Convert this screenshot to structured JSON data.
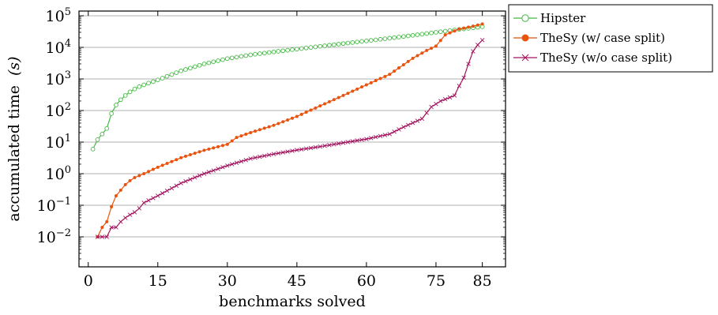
{
  "chart_data": {
    "type": "line",
    "xlabel": "benchmarks solved",
    "ylabel": "accumulated time",
    "ylabel_unit": "(s)",
    "yscale": "log",
    "xlim": [
      -2,
      90
    ],
    "ylim_exp": [
      -2.95,
      5.15
    ],
    "xticks": [
      0,
      15,
      30,
      45,
      60,
      75,
      85
    ],
    "yticks": [
      {
        "base": "10",
        "exp": "−2",
        "p": -2
      },
      {
        "base": "10",
        "exp": "−1",
        "p": -1
      },
      {
        "base": "10",
        "exp": "0",
        "p": 0
      },
      {
        "base": "10",
        "exp": "1",
        "p": 1
      },
      {
        "base": "10",
        "exp": "2",
        "p": 2
      },
      {
        "base": "10",
        "exp": "3",
        "p": 3
      },
      {
        "base": "10",
        "exp": "4",
        "p": 4
      },
      {
        "base": "10",
        "exp": "5",
        "p": 5
      }
    ],
    "grid": "horizontal",
    "legend_position": "top-right",
    "series": [
      {
        "name": "Hipster",
        "color": "#44b944",
        "marker": "circle-open",
        "points": [
          [
            1,
            6
          ],
          [
            2,
            12
          ],
          [
            3,
            18
          ],
          [
            4,
            27
          ],
          [
            5,
            80
          ],
          [
            6,
            150
          ],
          [
            7,
            220
          ],
          [
            8,
            300
          ],
          [
            9,
            390
          ],
          [
            10,
            480
          ],
          [
            11,
            570
          ],
          [
            12,
            650
          ],
          [
            13,
            740
          ],
          [
            14,
            820
          ],
          [
            15,
            930
          ],
          [
            20,
            1800
          ],
          [
            25,
            3000
          ],
          [
            30,
            4400
          ],
          [
            35,
            5800
          ],
          [
            40,
            7200
          ],
          [
            45,
            8800
          ],
          [
            50,
            10800
          ],
          [
            55,
            13200
          ],
          [
            60,
            16000
          ],
          [
            65,
            19500
          ],
          [
            70,
            24000
          ],
          [
            75,
            30000
          ],
          [
            80,
            37000
          ],
          [
            85,
            45000
          ]
        ]
      },
      {
        "name": "TheSy (w/ case split)",
        "color": "#e8530e",
        "marker": "dot",
        "points": [
          [
            2,
            0.01
          ],
          [
            3,
            0.02
          ],
          [
            4,
            0.03
          ],
          [
            5,
            0.09
          ],
          [
            6,
            0.2
          ],
          [
            7,
            0.3
          ],
          [
            8,
            0.45
          ],
          [
            9,
            0.6
          ],
          [
            10,
            0.75
          ],
          [
            12,
            1.0
          ],
          [
            15,
            1.6
          ],
          [
            20,
            3.2
          ],
          [
            25,
            5.5
          ],
          [
            30,
            8.5
          ],
          [
            32,
            14
          ],
          [
            35,
            20
          ],
          [
            40,
            34
          ],
          [
            45,
            65
          ],
          [
            50,
            140
          ],
          [
            55,
            300
          ],
          [
            60,
            650
          ],
          [
            65,
            1400
          ],
          [
            70,
            4500
          ],
          [
            73,
            8000
          ],
          [
            75,
            11000
          ],
          [
            77,
            25000
          ],
          [
            80,
            38000
          ],
          [
            83,
            47000
          ],
          [
            85,
            55000
          ]
        ]
      },
      {
        "name": "TheSy (w/o case split)",
        "color": "#a3135e",
        "marker": "cross",
        "points": [
          [
            2,
            0.01
          ],
          [
            3,
            0.01
          ],
          [
            4,
            0.01
          ],
          [
            5,
            0.02
          ],
          [
            6,
            0.02
          ],
          [
            7,
            0.03
          ],
          [
            8,
            0.04
          ],
          [
            9,
            0.05
          ],
          [
            10,
            0.06
          ],
          [
            11,
            0.08
          ],
          [
            12,
            0.12
          ],
          [
            15,
            0.2
          ],
          [
            20,
            0.5
          ],
          [
            25,
            1.0
          ],
          [
            30,
            1.8
          ],
          [
            35,
            3.0
          ],
          [
            40,
            4.2
          ],
          [
            45,
            5.6
          ],
          [
            50,
            7.2
          ],
          [
            55,
            9.5
          ],
          [
            60,
            12.5
          ],
          [
            65,
            18
          ],
          [
            68,
            30
          ],
          [
            72,
            55
          ],
          [
            74,
            130
          ],
          [
            76,
            200
          ],
          [
            78,
            260
          ],
          [
            79,
            300
          ],
          [
            80,
            600
          ],
          [
            81,
            1100
          ],
          [
            82,
            3000
          ],
          [
            83,
            7500
          ],
          [
            84,
            12000
          ],
          [
            85,
            17000
          ]
        ]
      }
    ]
  }
}
